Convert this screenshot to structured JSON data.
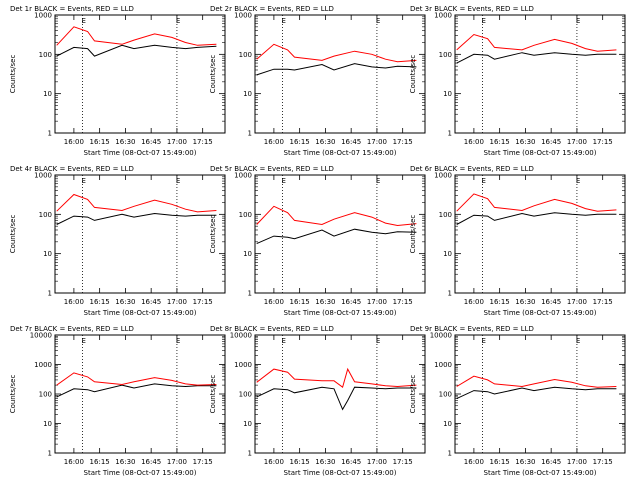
{
  "figure": {
    "xlabel": "Start Time (08-Oct-07 15:49:00)",
    "ylabel": "Counts/sec"
  },
  "chart_data": [
    {
      "type": "line",
      "title": "Det 1r BLACK = Events, RED = LLD",
      "xlabel": "Start Time (08-Oct-07 15:49:00)",
      "ylabel": "Counts/sec",
      "yscale": "log",
      "ylim": [
        1,
        1000
      ],
      "xticks": [
        "16:00",
        "16:15",
        "16:30",
        "16:45",
        "17:00",
        "17:15"
      ],
      "markers": [
        "16:05",
        "17:00"
      ],
      "marker_label": "E",
      "x": [
        "15:50",
        "16:00",
        "16:08",
        "16:12",
        "16:28",
        "16:35",
        "16:47",
        "16:57",
        "17:05",
        "17:12",
        "17:23"
      ],
      "series": [
        {
          "color": "#000000",
          "values": [
            90,
            150,
            140,
            90,
            170,
            140,
            170,
            150,
            140,
            150,
            160
          ]
        },
        {
          "color": "#ff0000",
          "values": [
            170,
            500,
            380,
            220,
            180,
            230,
            330,
            270,
            200,
            170,
            180
          ]
        }
      ]
    },
    {
      "type": "line",
      "title": "Det 2r BLACK = Events, RED = LLD",
      "xlabel": "Start Time (08-Oct-07 15:49:00)",
      "ylabel": "Counts/sec",
      "yscale": "log",
      "ylim": [
        1,
        1000
      ],
      "xticks": [
        "16:00",
        "16:15",
        "16:30",
        "16:45",
        "17:00",
        "17:15"
      ],
      "markers": [
        "16:05",
        "17:00"
      ],
      "marker_label": "E",
      "x": [
        "15:50",
        "16:00",
        "16:08",
        "16:12",
        "16:28",
        "16:35",
        "16:47",
        "16:57",
        "17:05",
        "17:12",
        "17:23"
      ],
      "series": [
        {
          "color": "#000000",
          "values": [
            30,
            42,
            42,
            40,
            55,
            40,
            58,
            48,
            45,
            50,
            48
          ]
        },
        {
          "color": "#ff0000",
          "values": [
            75,
            180,
            130,
            85,
            70,
            90,
            120,
            100,
            75,
            65,
            70
          ]
        }
      ]
    },
    {
      "type": "line",
      "title": "Det 3r BLACK = Events, RED = LLD",
      "xlabel": "Start Time (08-Oct-07 15:49:00)",
      "ylabel": "Counts/sec",
      "yscale": "log",
      "ylim": [
        1,
        1000
      ],
      "xticks": [
        "16:00",
        "16:15",
        "16:30",
        "16:45",
        "17:00",
        "17:15"
      ],
      "markers": [
        "16:05",
        "17:00"
      ],
      "marker_label": "E",
      "x": [
        "15:50",
        "16:00",
        "16:08",
        "16:12",
        "16:28",
        "16:35",
        "16:47",
        "16:57",
        "17:05",
        "17:12",
        "17:23"
      ],
      "series": [
        {
          "color": "#000000",
          "values": [
            60,
            100,
            95,
            75,
            110,
            95,
            110,
            100,
            95,
            100,
            100
          ]
        },
        {
          "color": "#ff0000",
          "values": [
            130,
            320,
            250,
            150,
            130,
            170,
            240,
            190,
            140,
            120,
            130
          ]
        }
      ]
    },
    {
      "type": "line",
      "title": "Det 4r BLACK = Events, RED = LLD",
      "xlabel": "Start Time (08-Oct-07 15:49:00)",
      "ylabel": "Counts/sec",
      "yscale": "log",
      "ylim": [
        1,
        1000
      ],
      "xticks": [
        "16:00",
        "16:15",
        "16:30",
        "16:45",
        "17:00",
        "17:15"
      ],
      "markers": [
        "16:05",
        "17:00"
      ],
      "marker_label": "E",
      "x": [
        "15:50",
        "16:00",
        "16:08",
        "16:12",
        "16:28",
        "16:35",
        "16:47",
        "16:57",
        "17:05",
        "17:12",
        "17:23"
      ],
      "series": [
        {
          "color": "#000000",
          "values": [
            55,
            90,
            85,
            70,
            100,
            85,
            105,
            95,
            90,
            95,
            95
          ]
        },
        {
          "color": "#ff0000",
          "values": [
            120,
            320,
            240,
            150,
            125,
            160,
            230,
            180,
            135,
            115,
            125
          ]
        }
      ]
    },
    {
      "type": "line",
      "title": "Det 5r BLACK = Events, RED = LLD",
      "xlabel": "Start Time (08-Oct-07 15:49:00)",
      "ylabel": "Counts/sec",
      "yscale": "log",
      "ylim": [
        1,
        1000
      ],
      "xticks": [
        "16:00",
        "16:15",
        "16:30",
        "16:45",
        "17:00",
        "17:15"
      ],
      "markers": [
        "16:05",
        "17:00"
      ],
      "marker_label": "E",
      "x": [
        "15:50",
        "16:00",
        "16:08",
        "16:12",
        "16:28",
        "16:35",
        "16:47",
        "16:57",
        "17:05",
        "17:12",
        "17:23"
      ],
      "series": [
        {
          "color": "#000000",
          "values": [
            18,
            28,
            26,
            24,
            40,
            28,
            42,
            35,
            32,
            36,
            35
          ]
        },
        {
          "color": "#ff0000",
          "values": [
            55,
            160,
            110,
            70,
            55,
            75,
            110,
            85,
            60,
            52,
            58
          ]
        }
      ]
    },
    {
      "type": "line",
      "title": "Det 6r BLACK = Events, RED = LLD",
      "xlabel": "Start Time (08-Oct-07 15:49:00)",
      "ylabel": "Counts/sec",
      "yscale": "log",
      "ylim": [
        1,
        1000
      ],
      "xticks": [
        "16:00",
        "16:15",
        "16:30",
        "16:45",
        "17:00",
        "17:15"
      ],
      "markers": [
        "16:05",
        "17:00"
      ],
      "marker_label": "E",
      "x": [
        "15:50",
        "16:00",
        "16:08",
        "16:12",
        "16:28",
        "16:35",
        "16:47",
        "16:57",
        "17:05",
        "17:12",
        "17:23"
      ],
      "series": [
        {
          "color": "#000000",
          "values": [
            55,
            95,
            90,
            70,
            105,
            90,
            110,
            100,
            95,
            100,
            100
          ]
        },
        {
          "color": "#ff0000",
          "values": [
            120,
            330,
            250,
            150,
            125,
            165,
            240,
            190,
            140,
            120,
            130
          ]
        }
      ]
    },
    {
      "type": "line",
      "title": "Det 7r BLACK = Events, RED = LLD",
      "xlabel": "Start Time (08-Oct-07 15:49:00)",
      "ylabel": "Counts/sec",
      "yscale": "log",
      "ylim": [
        1,
        10000
      ],
      "xticks": [
        "16:00",
        "16:15",
        "16:30",
        "16:45",
        "17:00",
        "17:15"
      ],
      "markers": [
        "16:05",
        "17:00"
      ],
      "marker_label": "E",
      "x": [
        "15:50",
        "16:00",
        "16:08",
        "16:12",
        "16:28",
        "16:35",
        "16:47",
        "16:57",
        "17:05",
        "17:12",
        "17:23"
      ],
      "series": [
        {
          "color": "#000000",
          "values": [
            80,
            150,
            140,
            120,
            200,
            160,
            220,
            190,
            180,
            190,
            190
          ]
        },
        {
          "color": "#ff0000",
          "values": [
            200,
            520,
            380,
            260,
            210,
            260,
            360,
            290,
            220,
            200,
            210
          ]
        }
      ]
    },
    {
      "type": "line",
      "title": "Det 8r BLACK = Events, RED = LLD",
      "xlabel": "Start Time (08-Oct-07 15:49:00)",
      "ylabel": "Counts/sec",
      "yscale": "log",
      "ylim": [
        1,
        10000
      ],
      "xticks": [
        "16:00",
        "16:15",
        "16:30",
        "16:45",
        "17:00",
        "17:15"
      ],
      "markers": [
        "16:05",
        "17:00"
      ],
      "marker_label": "E",
      "x": [
        "15:50",
        "16:00",
        "16:08",
        "16:12",
        "16:28",
        "16:35",
        "16:40",
        "16:43",
        "16:47",
        "16:57",
        "17:05",
        "17:12",
        "17:23"
      ],
      "series": [
        {
          "color": "#000000",
          "values": [
            80,
            150,
            140,
            110,
            170,
            150,
            30,
            60,
            170,
            160,
            150,
            160,
            160
          ]
        },
        {
          "color": "#ff0000",
          "values": [
            250,
            700,
            550,
            320,
            280,
            280,
            170,
            700,
            260,
            220,
            190,
            180,
            200
          ]
        }
      ]
    },
    {
      "type": "line",
      "title": "Det 9r BLACK = Events, RED = LLD",
      "xlabel": "Start Time (08-Oct-07 15:49:00)",
      "ylabel": "Counts/sec",
      "yscale": "log",
      "ylim": [
        1,
        10000
      ],
      "xticks": [
        "16:00",
        "16:15",
        "16:30",
        "16:45",
        "17:00",
        "17:15"
      ],
      "markers": [
        "16:05",
        "17:00"
      ],
      "marker_label": "E",
      "x": [
        "15:50",
        "16:00",
        "16:08",
        "16:12",
        "16:28",
        "16:35",
        "16:47",
        "16:57",
        "17:05",
        "17:12",
        "17:23"
      ],
      "series": [
        {
          "color": "#000000",
          "values": [
            70,
            130,
            120,
            100,
            160,
            130,
            170,
            150,
            140,
            150,
            150
          ]
        },
        {
          "color": "#ff0000",
          "values": [
            180,
            400,
            300,
            220,
            180,
            220,
            310,
            250,
            190,
            170,
            180
          ]
        }
      ]
    }
  ]
}
